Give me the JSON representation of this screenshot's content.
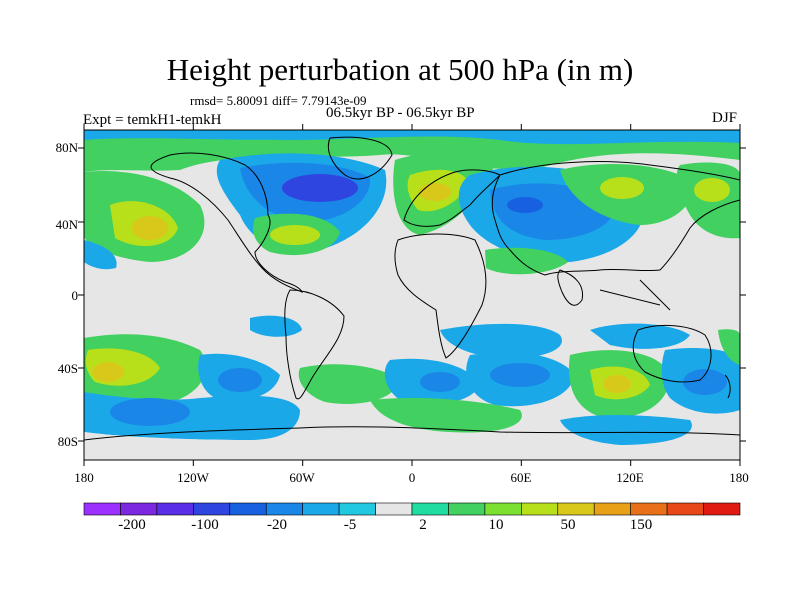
{
  "title": "Height perturbation at 500 hPa (in m)",
  "stats": "rmsd= 5.80091 diff= 7.79143e-09",
  "period": "06.5kyr BP - 06.5kyr BP",
  "expt": "Expt = temkH1-temkH",
  "season": "DJF",
  "lat_labels": [
    "80N",
    "40N",
    "0",
    "40S",
    "80S"
  ],
  "lon_labels": [
    "180",
    "120W",
    "60W",
    "0",
    "60E",
    "120E",
    "180"
  ],
  "colorbar": {
    "colors": [
      "#9b30ff",
      "#7b28e0",
      "#5a2de6",
      "#2f45e0",
      "#1760e0",
      "#1a86e8",
      "#1aa8e8",
      "#22c8e0",
      "#e6e6e6",
      "#20dca0",
      "#42d060",
      "#7ce030",
      "#b8e01a",
      "#d8c81a",
      "#e8a018",
      "#e87018",
      "#e84818",
      "#e01a10"
    ],
    "labels": [
      "-200",
      "-100",
      "-20",
      "-5",
      "2",
      "10",
      "50",
      "150"
    ]
  }
}
